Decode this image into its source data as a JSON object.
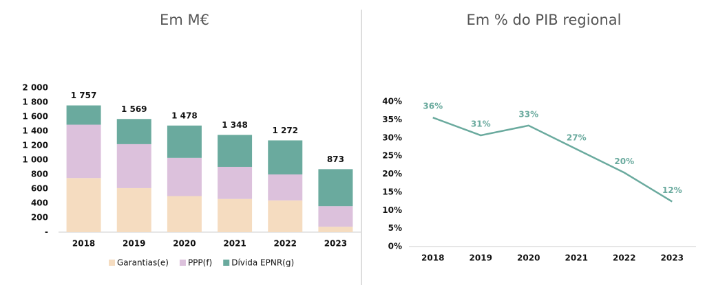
{
  "chart_data": [
    {
      "type": "stacked_bar",
      "title": "Em M€",
      "categories": [
        "2018",
        "2019",
        "2020",
        "2021",
        "2022",
        "2023"
      ],
      "series": [
        {
          "name": "Garantias(e)",
          "color": "#f5dcc0",
          "values": [
            750,
            610,
            500,
            460,
            440,
            75
          ]
        },
        {
          "name": "PPP(f)",
          "color": "#dcc1dc",
          "values": [
            740,
            610,
            530,
            445,
            360,
            285
          ]
        },
        {
          "name": "Dívida EPNR(g)",
          "color": "#6aaa9e",
          "values": [
            267,
            349,
            448,
            443,
            472,
            513
          ]
        }
      ],
      "totals": [
        1757,
        1569,
        1478,
        1348,
        1272,
        873
      ],
      "total_labels": [
        "1 757",
        "1 569",
        "1 478",
        "1 348",
        "1 272",
        "873"
      ],
      "ylim": [
        0,
        2000
      ],
      "yticks": [
        {
          "value": 0,
          "label": "-"
        },
        200,
        400,
        600,
        800,
        {
          "value": 1000,
          "label": "1 000"
        },
        {
          "value": 1200,
          "label": "1 200"
        },
        {
          "value": 1400,
          "label": "1 400"
        },
        {
          "value": 1600,
          "label": "1 600"
        },
        {
          "value": 1800,
          "label": "1 800"
        },
        {
          "value": 2000,
          "label": "2 000"
        }
      ],
      "legend": "bottom"
    },
    {
      "type": "line",
      "title": "Em % do PIB regional",
      "categories": [
        "2018",
        "2019",
        "2020",
        "2021",
        "2022",
        "2023"
      ],
      "values": [
        35.6,
        30.7,
        33.4,
        26.9,
        20.4,
        12.4
      ],
      "value_labels": [
        "36%",
        "31%",
        "33%",
        "27%",
        "20%",
        "12%"
      ],
      "color": "#6aaa9e",
      "ylim": [
        0,
        40
      ],
      "yticks": [
        {
          "value": 0,
          "label": "0%"
        },
        {
          "value": 5,
          "label": "5%"
        },
        {
          "value": 10,
          "label": "10%"
        },
        {
          "value": 15,
          "label": "15%"
        },
        {
          "value": 20,
          "label": "20%"
        },
        {
          "value": 25,
          "label": "25%"
        },
        {
          "value": 30,
          "label": "30%"
        },
        {
          "value": 35,
          "label": "35%"
        },
        {
          "value": 40,
          "label": "40%"
        }
      ]
    }
  ]
}
